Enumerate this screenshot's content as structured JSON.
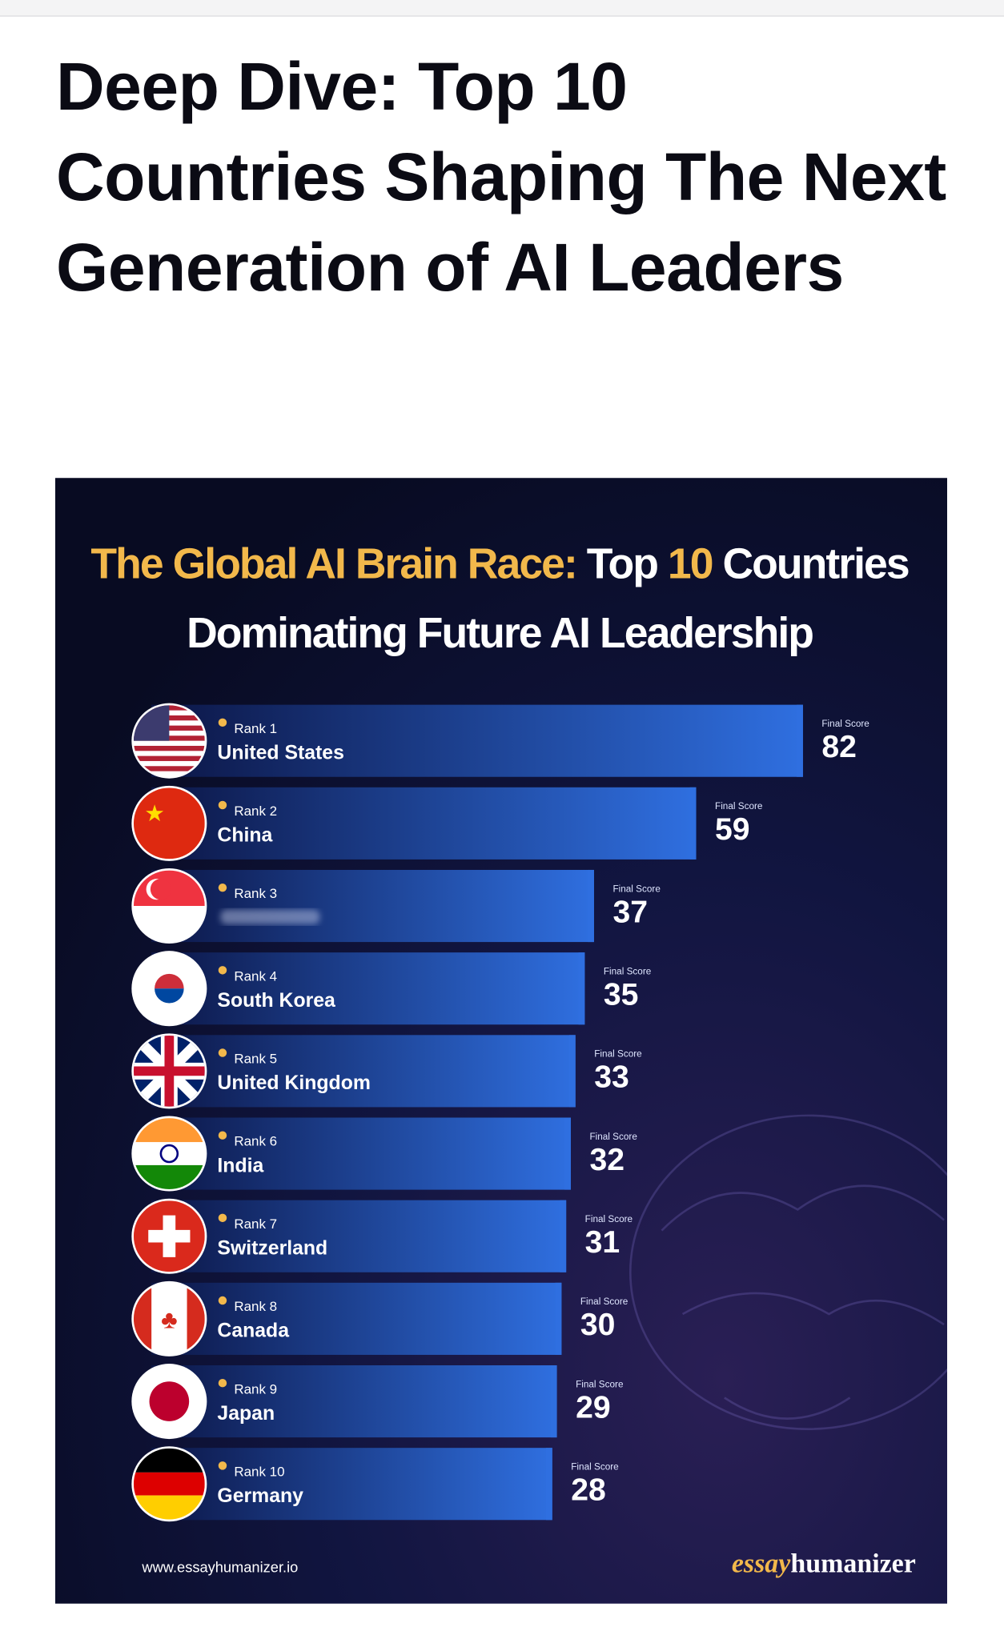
{
  "header": {
    "title": "Deep Dive: Top 10 Countries Shaping The Next Generation of AI Leaders"
  },
  "chart_data": {
    "type": "bar",
    "title_parts": [
      "The Global AI Brain Race:",
      "Top",
      "10",
      "Countries"
    ],
    "subtitle": "Dominating Future AI Leadership",
    "ranks": [
      "Rank 1",
      "Rank 2",
      "Rank 3",
      "Rank 4",
      "Rank 5",
      "Rank 6",
      "Rank 7",
      "Rank 8",
      "Rank 9",
      "Rank 10"
    ],
    "categories": [
      "United States",
      "China",
      null,
      "South Korea",
      "United Kingdom",
      "India",
      "Switzerland",
      "Canada",
      "Japan",
      "Germany"
    ],
    "value_caption": "Final Score",
    "values": [
      82,
      59,
      37,
      35,
      33,
      32,
      31,
      30,
      29,
      28
    ],
    "color": "#2f6fe0",
    "footer": "www.essayhumanizer.io",
    "logo": [
      "essay",
      "humanizer"
    ]
  }
}
